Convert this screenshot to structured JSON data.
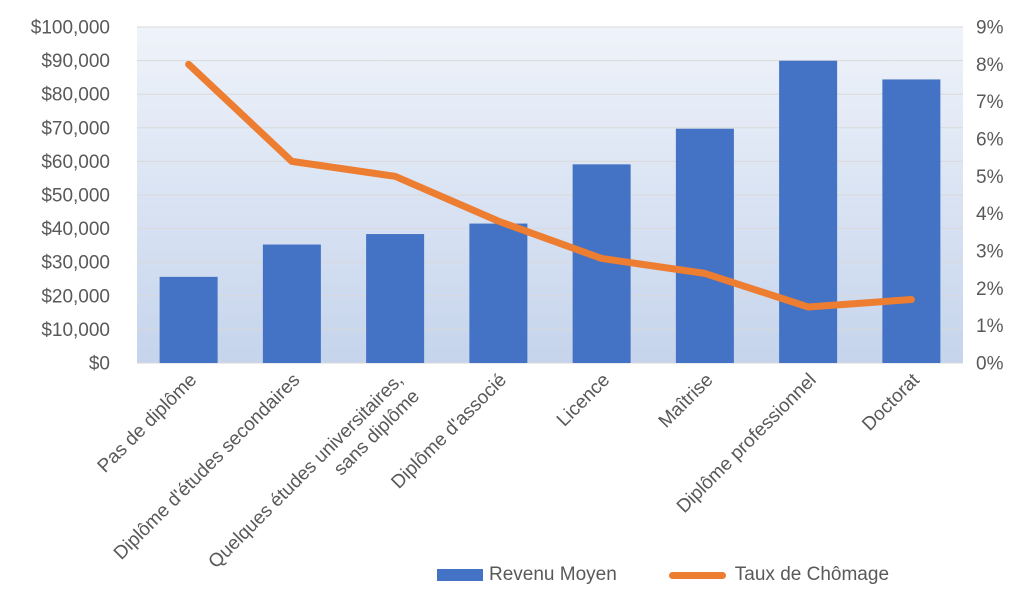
{
  "chart_data": {
    "type": "combo",
    "title": "",
    "categories": [
      "Pas de diplôme",
      "Diplôme d'études secondaires",
      "Quelques études universitaires,\nsans diplôme",
      "Diplôme d'associé",
      "Licence",
      "Maîtrise",
      "Diplôme professionnel",
      "Doctorat"
    ],
    "series": [
      {
        "name": "Revenu Moyen",
        "type": "bar",
        "axis": "left",
        "color": "#4472C4",
        "values": [
          25636,
          35256,
          38376,
          41496,
          59124,
          69732,
          89960,
          84396
        ]
      },
      {
        "name": "Taux de Chômage",
        "type": "line",
        "axis": "right",
        "color": "#ED7D31",
        "values": [
          8.0,
          5.4,
          5.0,
          3.8,
          2.8,
          2.4,
          1.5,
          1.7
        ]
      }
    ],
    "left_axis": {
      "min": 0,
      "max": 100000,
      "step": 10000,
      "tick_labels": [
        "$100,000",
        "$90,000",
        "$80,000",
        "$70,000",
        "$60,000",
        "$50,000",
        "$40,000",
        "$30,000",
        "$20,000",
        "$10,000",
        "$0"
      ]
    },
    "right_axis": {
      "min": 0,
      "max": 9,
      "step": 1,
      "tick_labels": [
        "9%",
        "8%",
        "7%",
        "6%",
        "5%",
        "4%",
        "3%",
        "2%",
        "1%",
        "0%"
      ]
    },
    "grid": true,
    "legend_position": "bottom",
    "x_label_rotation_deg": -45,
    "plot_background": {
      "gradient_top": "#EFF3FA",
      "gradient_bottom": "#C5D4EC"
    },
    "gridline_color": "#D9D9D9",
    "text_color": "#595959"
  },
  "legend": {
    "items": [
      {
        "label": "Revenu Moyen",
        "color": "#4472C4",
        "marker": "bar"
      },
      {
        "label": "Taux de Chômage",
        "color": "#ED7D31",
        "marker": "line"
      }
    ]
  }
}
